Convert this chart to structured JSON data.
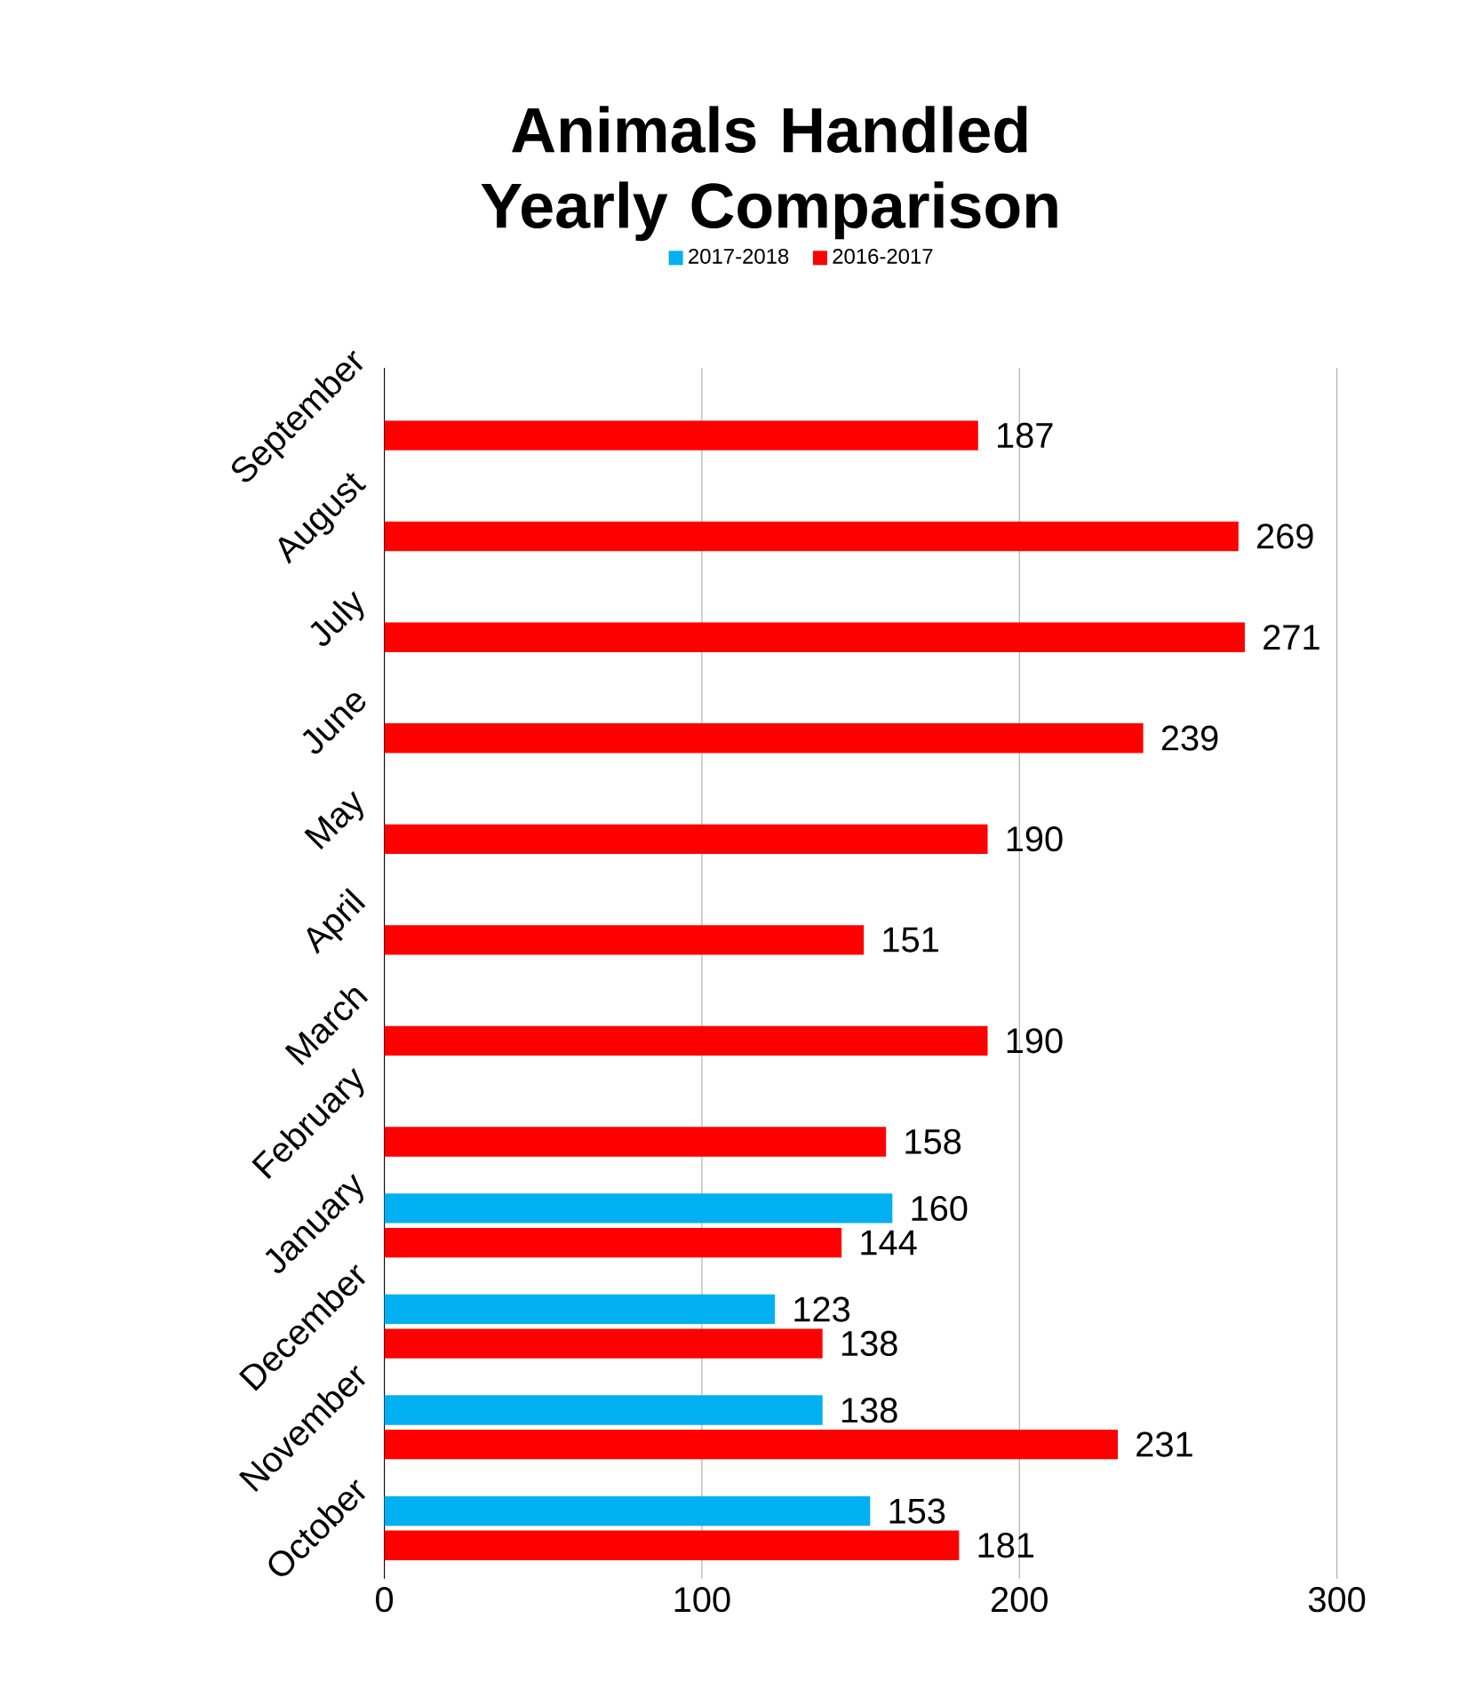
{
  "chart_data": {
    "type": "bar",
    "orientation": "horizontal",
    "title": "Animals Handled Yearly Comparison",
    "categories": [
      "September",
      "August",
      "July",
      "June",
      "May",
      "April",
      "March",
      "February",
      "January",
      "December",
      "November",
      "October"
    ],
    "series": [
      {
        "name": "2017-2018",
        "color": "#00b0f0",
        "values": [
          null,
          null,
          null,
          null,
          null,
          null,
          null,
          null,
          160,
          123,
          138,
          153
        ]
      },
      {
        "name": "2016-2017",
        "color": "#ff0000",
        "values": [
          187,
          269,
          271,
          239,
          190,
          151,
          190,
          158,
          144,
          138,
          231,
          181
        ]
      }
    ],
    "xlim": [
      0,
      300
    ],
    "xticks": [
      0,
      100,
      200,
      300
    ],
    "grid": "x",
    "legend": "top",
    "data_labels": true
  }
}
